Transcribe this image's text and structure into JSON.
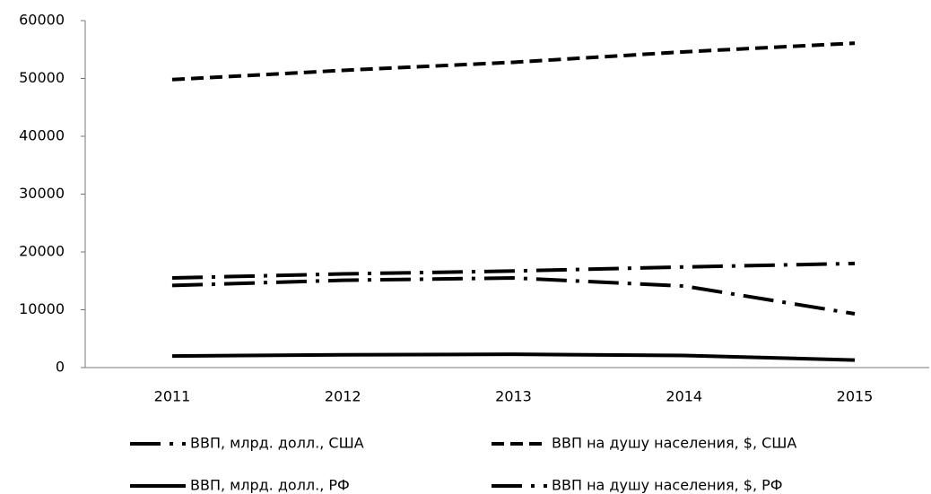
{
  "chart_data": {
    "type": "line",
    "categories": [
      "2011",
      "2012",
      "2013",
      "2014",
      "2015"
    ],
    "series": [
      {
        "name": "ВВП, млрд. долл., США",
        "color": "#000000",
        "dash": "long-dash-dot",
        "values": [
          15500,
          16200,
          16700,
          17400,
          18000
        ]
      },
      {
        "name": "ВВП на душу населения, $, США",
        "color": "#000000",
        "dash": "dash",
        "values": [
          49800,
          51400,
          52800,
          54600,
          56100
        ]
      },
      {
        "name": "ВВП, млрд. долл., РФ",
        "color": "#000000",
        "dash": "solid",
        "values": [
          2000,
          2200,
          2300,
          2100,
          1300
        ]
      },
      {
        "name": "ВВП на душу населения, $, РФ",
        "color": "#000000",
        "dash": "long-dash-dot",
        "values": [
          14200,
          15100,
          15500,
          14100,
          9300
        ]
      }
    ],
    "ylim": [
      0,
      60000
    ],
    "yticks": [
      0,
      10000,
      20000,
      30000,
      40000,
      50000,
      60000
    ],
    "grid": false,
    "legend": "bottom"
  }
}
